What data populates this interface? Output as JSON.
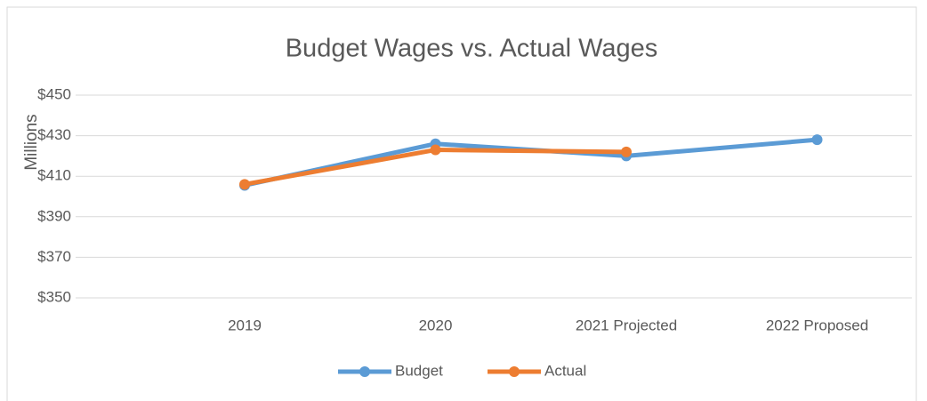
{
  "chart_data": {
    "type": "line",
    "title": "Budget Wages vs. Actual Wages",
    "y_label": "Millions",
    "categories": [
      "2019",
      "2020",
      "2021 Projected",
      "2022 Proposed"
    ],
    "series": [
      {
        "name": "Budget",
        "color": "#5b9bd5",
        "values": [
          405.5,
          426,
          420,
          428
        ]
      },
      {
        "name": "Actual",
        "color": "#ed7d31",
        "values": [
          406,
          423,
          422,
          null
        ]
      }
    ],
    "ylim": [
      350,
      450
    ],
    "yticks": [
      {
        "value": 350,
        "label": "$350"
      },
      {
        "value": 370,
        "label": "$370"
      },
      {
        "value": 390,
        "label": "$390"
      },
      {
        "value": 410,
        "label": "$410"
      },
      {
        "value": 430,
        "label": "$430"
      },
      {
        "value": 450,
        "label": "$450"
      }
    ],
    "grid": true,
    "legend": "bottom"
  }
}
